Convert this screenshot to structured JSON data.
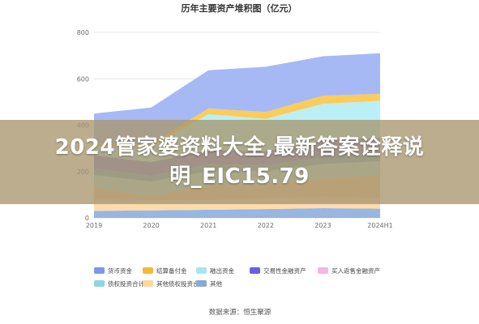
{
  "chart_data": {
    "type": "area",
    "stacked": true,
    "title": "历年主要资产堆积图（亿元）",
    "categories": [
      "2019",
      "2020",
      "2021",
      "2022",
      "2023",
      "2024H1"
    ],
    "y_ticks": [
      "0",
      "200",
      "400",
      "600",
      "800"
    ],
    "ylim": [
      0,
      800
    ],
    "grid": true,
    "legend_position": "bottom",
    "series": [
      {
        "name": "其他",
        "color": "#8fb0df",
        "values": [
          30,
          32,
          35,
          38,
          42,
          40
        ]
      },
      {
        "name": "其他债权投资合计",
        "color": "#fcd9a6",
        "values": [
          40,
          38,
          38,
          40,
          45,
          40
        ]
      },
      {
        "name": "买入返售金融资产",
        "color": "#f3c6e4",
        "values": [
          10,
          6,
          4,
          4,
          5,
          5
        ]
      },
      {
        "name": "交易性金融资产",
        "color": "#f3c58e",
        "values": [
          50,
          20,
          60,
          60,
          80,
          100
        ]
      },
      {
        "name": "债权投资合计",
        "color": "#a9dcde",
        "values": [
          55,
          60,
          65,
          60,
          60,
          60
        ]
      },
      {
        "name": "融出资金",
        "color": "#6aacc8",
        "values": [
          30,
          25,
          30,
          25,
          30,
          30
        ]
      },
      {
        "name": "交易性金融资产",
        "color": "#7f79e0",
        "values": [
          55,
          60,
          60,
          60,
          70,
          70
        ]
      },
      {
        "name": "融出资金",
        "color": "#b4eef4",
        "values": [
          40,
          70,
          155,
          140,
          160,
          160
        ]
      },
      {
        "name": "结算备付金",
        "color": "#f8c84e",
        "values": [
          10,
          10,
          25,
          30,
          35,
          30
        ]
      },
      {
        "name": "货币资金",
        "color": "#9eb3f3",
        "values": [
          130,
          155,
          165,
          195,
          170,
          175
        ]
      }
    ],
    "legend": [
      {
        "name": "货币资金",
        "color": "#7a97ee"
      },
      {
        "name": "结算备付金",
        "color": "#f5b93a"
      },
      {
        "name": "融出资金",
        "color": "#a9e4f0"
      },
      {
        "name": "交易性金融资产",
        "color": "#6a5fe0"
      },
      {
        "name": "买入返售金融资产",
        "color": "#f0b8df"
      },
      {
        "name": "债权投资合计",
        "color": "#8ed6dc"
      },
      {
        "name": "其他债权投资合计",
        "color": "#fcd69e"
      },
      {
        "name": "其他",
        "color": "#8aa8d6"
      }
    ]
  },
  "source": "数据来源：恒生聚源",
  "overlay": {
    "line1": "2024管家婆资料大全,最新答案诠释说",
    "line2": "明_EIC15.79"
  }
}
